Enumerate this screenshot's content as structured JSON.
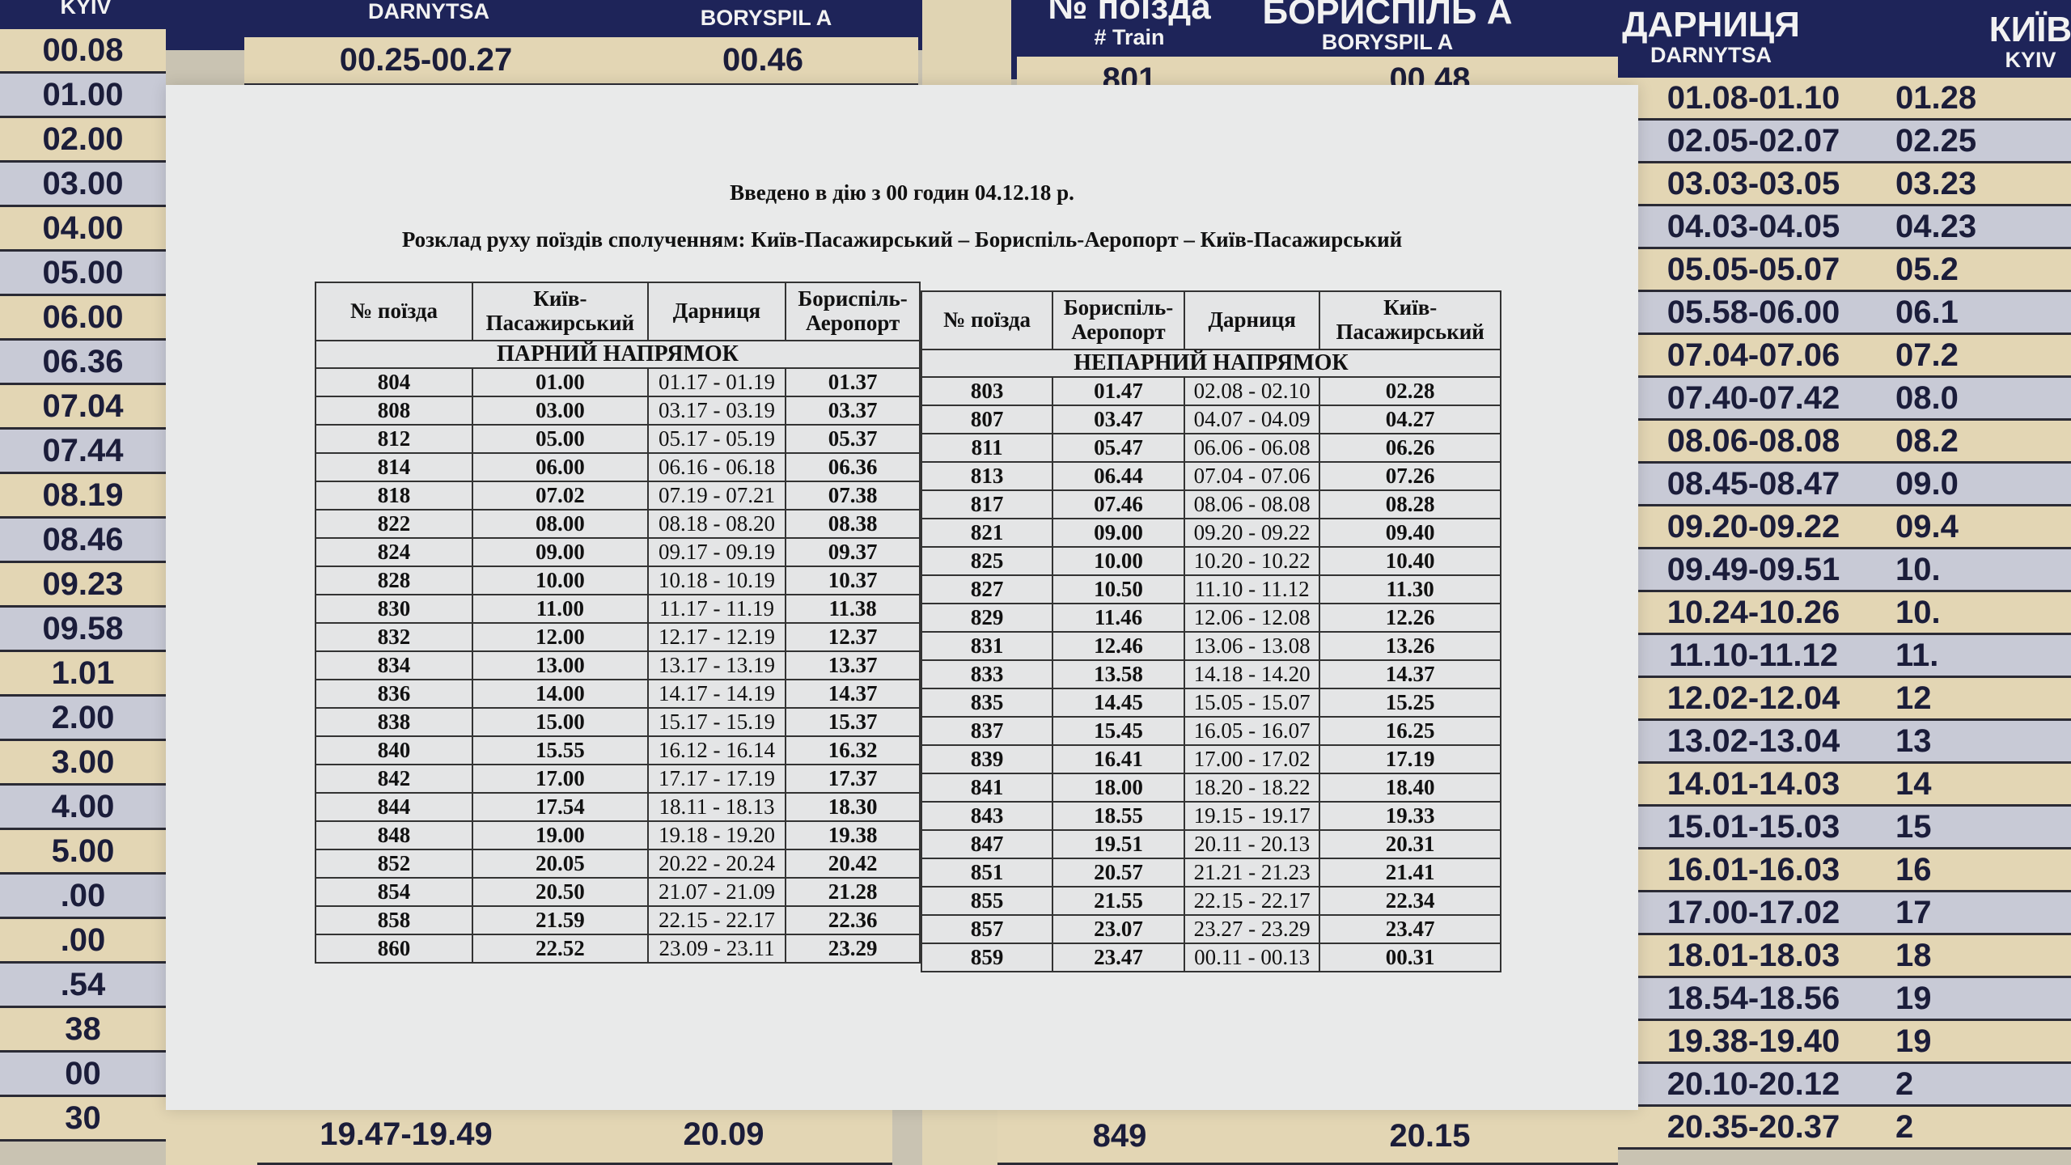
{
  "background_board": {
    "left_board": {
      "headers": [
        {
          "big": "",
          "small": "KYIV"
        },
        {
          "big": "",
          "small": "DARNYTSA"
        },
        {
          "big": "",
          "small": "BORYSPIL A"
        }
      ],
      "kyiv_column": [
        "00.08",
        "01.00",
        "02.00",
        "03.00",
        "04.00",
        "05.00",
        "06.00",
        "06.36",
        "07.04",
        "07.44",
        "08.19",
        "08.46",
        "09.23",
        "09.58",
        "1.01",
        "2.00",
        "3.00",
        "4.00",
        "5.00",
        ".00",
        ".00",
        ".54",
        "38",
        "00",
        "30"
      ],
      "top_row": {
        "darnytsa": "00.25-00.27",
        "boryspil": "00.46"
      },
      "bottom_row": {
        "darnytsa": "19.47-19.49",
        "boryspil": "20.09"
      }
    },
    "right_board": {
      "headers": [
        {
          "big": "№ поїзда",
          "small": "# Train"
        },
        {
          "big": "БОРИСПІЛЬ А",
          "small": "BORYSPIL A"
        },
        {
          "big": "ДАРНИЦЯ",
          "small": "DARNYTSA"
        },
        {
          "big": "КИЇВ",
          "small": "KYIV"
        }
      ],
      "top_row": {
        "train": "801",
        "boryspil": "00.48"
      },
      "bottom_row": {
        "train": "849",
        "boryspil": "20.15"
      },
      "darnytsa_column": [
        "01.08-01.10",
        "02.05-02.07",
        "03.03-03.05",
        "04.03-04.05",
        "05.05-05.07",
        "05.58-06.00",
        "07.04-07.06",
        "07.40-07.42",
        "08.06-08.08",
        "08.45-08.47",
        "09.20-09.22",
        "09.49-09.51",
        "10.24-10.26",
        "11.10-11.12",
        "12.02-12.04",
        "13.02-13.04",
        "14.01-14.03",
        "15.01-15.03",
        "16.01-16.03",
        "17.00-17.02",
        "18.01-18.03",
        "18.54-18.56",
        "19.38-19.40",
        "20.10-20.12",
        "20.35-20.37"
      ],
      "kyiv_column": [
        "01.28",
        "02.25",
        "03.23",
        "04.23",
        "05.2",
        "06.1",
        "07.2",
        "08.0",
        "08.2",
        "09.0",
        "09.4",
        "10.",
        "10.",
        "11.",
        "12",
        "13",
        "14",
        "15",
        "16",
        "17",
        "18",
        "19",
        "19",
        "2",
        "2"
      ]
    },
    "colors": {
      "navy": "#1e2459",
      "tan": "#e3d6b4",
      "grey": "#c8cad6"
    }
  },
  "notice": {
    "effective_line": "Введено в дію з 00 годин 04.12.18 р.",
    "route_line": "Розклад руху поїздів сполученням: Київ-Пасажирський – Бориспіль-Аеропорт – Київ-Пасажирський",
    "even_table": {
      "headers": [
        "№ поїзда",
        "Київ-Пасажирський",
        "Дарниця",
        "Бориспіль-Аеропорт"
      ],
      "section": "ПАРНИЙ НАПРЯМОК",
      "rows": [
        [
          "804",
          "01.00",
          "01.17 - 01.19",
          "01.37"
        ],
        [
          "808",
          "03.00",
          "03.17 - 03.19",
          "03.37"
        ],
        [
          "812",
          "05.00",
          "05.17 - 05.19",
          "05.37"
        ],
        [
          "814",
          "06.00",
          "06.16 - 06.18",
          "06.36"
        ],
        [
          "818",
          "07.02",
          "07.19 - 07.21",
          "07.38"
        ],
        [
          "822",
          "08.00",
          "08.18 - 08.20",
          "08.38"
        ],
        [
          "824",
          "09.00",
          "09.17 - 09.19",
          "09.37"
        ],
        [
          "828",
          "10.00",
          "10.18 - 10.19",
          "10.37"
        ],
        [
          "830",
          "11.00",
          "11.17 - 11.19",
          "11.38"
        ],
        [
          "832",
          "12.00",
          "12.17 - 12.19",
          "12.37"
        ],
        [
          "834",
          "13.00",
          "13.17 - 13.19",
          "13.37"
        ],
        [
          "836",
          "14.00",
          "14.17 - 14.19",
          "14.37"
        ],
        [
          "838",
          "15.00",
          "15.17 - 15.19",
          "15.37"
        ],
        [
          "840",
          "15.55",
          "16.12 - 16.14",
          "16.32"
        ],
        [
          "842",
          "17.00",
          "17.17 - 17.19",
          "17.37"
        ],
        [
          "844",
          "17.54",
          "18.11 - 18.13",
          "18.30"
        ],
        [
          "848",
          "19.00",
          "19.18 - 19.20",
          "19.38"
        ],
        [
          "852",
          "20.05",
          "20.22 - 20.24",
          "20.42"
        ],
        [
          "854",
          "20.50",
          "21.07 - 21.09",
          "21.28"
        ],
        [
          "858",
          "21.59",
          "22.15 - 22.17",
          "22.36"
        ],
        [
          "860",
          "22.52",
          "23.09 - 23.11",
          "23.29"
        ]
      ]
    },
    "odd_table": {
      "headers": [
        "№ поїзда",
        "Бориспіль-Аеропорт",
        "Дарниця",
        "Київ-Пасажирський"
      ],
      "section": "НЕПАРНИЙ НАПРЯМОК",
      "rows": [
        [
          "803",
          "01.47",
          "02.08 - 02.10",
          "02.28"
        ],
        [
          "807",
          "03.47",
          "04.07 - 04.09",
          "04.27"
        ],
        [
          "811",
          "05.47",
          "06.06 - 06.08",
          "06.26"
        ],
        [
          "813",
          "06.44",
          "07.04 - 07.06",
          "07.26"
        ],
        [
          "817",
          "07.46",
          "08.06 - 08.08",
          "08.28"
        ],
        [
          "821",
          "09.00",
          "09.20 - 09.22",
          "09.40"
        ],
        [
          "825",
          "10.00",
          "10.20 - 10.22",
          "10.40"
        ],
        [
          "827",
          "10.50",
          "11.10 - 11.12",
          "11.30"
        ],
        [
          "829",
          "11.46",
          "12.06 - 12.08",
          "12.26"
        ],
        [
          "831",
          "12.46",
          "13.06 - 13.08",
          "13.26"
        ],
        [
          "833",
          "13.58",
          "14.18 - 14.20",
          "14.37"
        ],
        [
          "835",
          "14.45",
          "15.05 - 15.07",
          "15.25"
        ],
        [
          "837",
          "15.45",
          "16.05 - 16.07",
          "16.25"
        ],
        [
          "839",
          "16.41",
          "17.00 - 17.02",
          "17.19"
        ],
        [
          "841",
          "18.00",
          "18.20 - 18.22",
          "18.40"
        ],
        [
          "843",
          "18.55",
          "19.15 - 19.17",
          "19.33"
        ],
        [
          "847",
          "19.51",
          "20.11 - 20.13",
          "20.31"
        ],
        [
          "851",
          "20.57",
          "21.21 - 21.23",
          "21.41"
        ],
        [
          "855",
          "21.55",
          "22.15 - 22.17",
          "22.34"
        ],
        [
          "857",
          "23.07",
          "23.27 - 23.29",
          "23.47"
        ],
        [
          "859",
          "23.47",
          "00.11 - 00.13",
          "00.31"
        ]
      ]
    }
  }
}
